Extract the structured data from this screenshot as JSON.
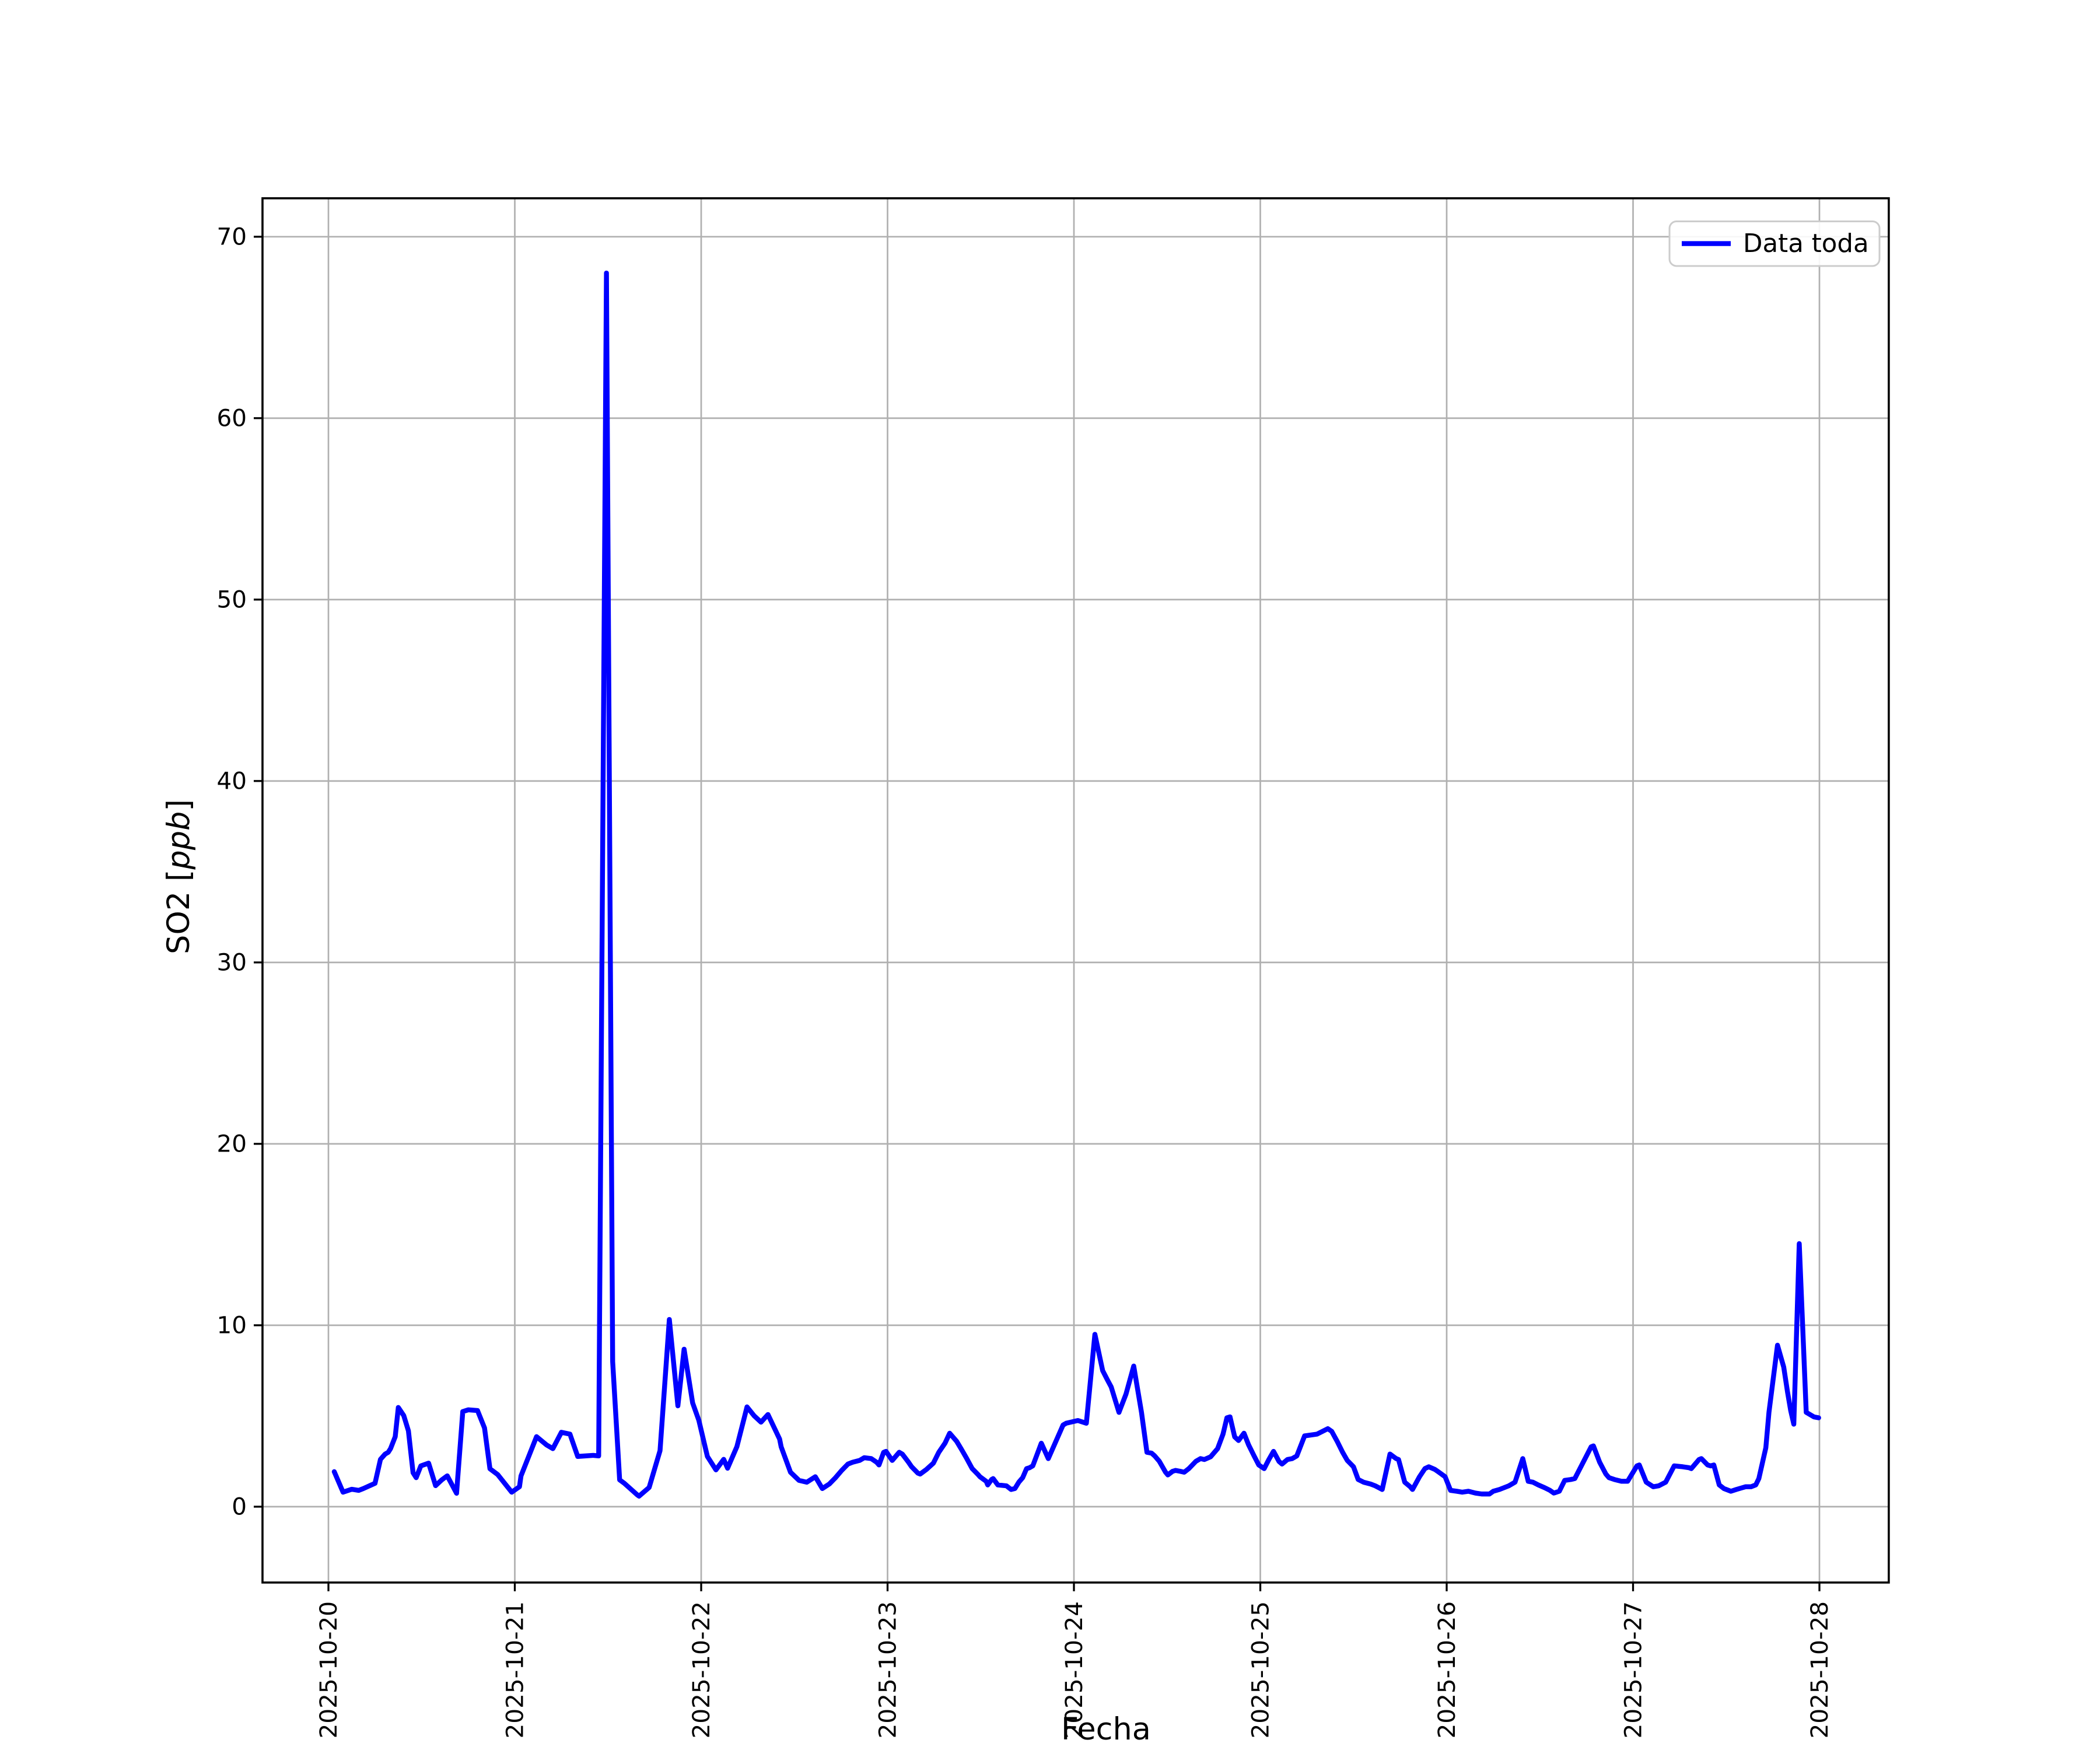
{
  "figure": {
    "background": "#ffffff",
    "title": ""
  },
  "axes": {
    "xlabel": "Fecha",
    "ylabel_prefix": "SO2 [",
    "ylabel_italic": "ppb",
    "ylabel_suffix": "]",
    "yticks": [
      0,
      10,
      20,
      30,
      40,
      50,
      60,
      70
    ],
    "xtick_hours": [
      0,
      24,
      48,
      72,
      96,
      120,
      144,
      168,
      192
    ],
    "xtick_labels": [
      "2025-10-20",
      "2025-10-21",
      "2025-10-22",
      "2025-10-23",
      "2025-10-24",
      "2025-10-25",
      "2025-10-26",
      "2025-10-27",
      "2025-10-28"
    ],
    "xlim_hours": [
      -8.49,
      200.93
    ],
    "ylim": [
      -4.18,
      72.12
    ],
    "grid": true,
    "grid_color": "#b0b0b0",
    "spine_color": "#000000"
  },
  "legend": {
    "label": "Data toda",
    "location": "upper right",
    "border_color": "#cccccc",
    "background": "#ffffff"
  },
  "chart_data": {
    "type": "line",
    "title": "",
    "xlabel": "Fecha",
    "ylabel": "SO2 [ppb]",
    "x_unit": "hours since 2025-10-20 00:00",
    "x_range_dates": [
      "2025-10-20",
      "2025-10-28"
    ],
    "ylim": [
      -4.18,
      72.12
    ],
    "grid": true,
    "legend_position": "upper right",
    "series": [
      {
        "name": "Data toda",
        "color": "#0000ff",
        "x_hours": [
          0.75,
          1.88,
          3.0,
          3.9,
          4.5,
          6.0,
          6.7,
          7.3,
          7.7,
          8.0,
          8.6,
          9.0,
          9.7,
          10.3,
          10.9,
          11.3,
          11.9,
          12.9,
          13.8,
          14.6,
          15.3,
          16.5,
          17.3,
          18.0,
          19.2,
          20.1,
          20.8,
          21.8,
          23.6,
          24.6,
          24.8,
          26.8,
          28.1,
          28.9,
          30.0,
          31.1,
          32.1,
          34.1,
          34.8,
          35.8,
          36.6,
          37.5,
          38.1,
          39.8,
          40.0,
          41.3,
          42.7,
          43.9,
          45.0,
          45.8,
          46.9,
          47.7,
          48.8,
          49.9,
          50.9,
          51.4,
          52.6,
          53.5,
          53.9,
          54.8,
          55.7,
          56.6,
          58.1,
          58.3,
          59.5,
          60.6,
          61.6,
          62.7,
          63.6,
          64.5,
          65.3,
          66.1,
          66.9,
          67.5,
          68.4,
          69.0,
          69.9,
          70.6,
          70.9,
          71.5,
          71.8,
          72.6,
          73.5,
          73.9,
          74.7,
          75.1,
          75.9,
          76.2,
          77.0,
          77.9,
          78.6,
          79.4,
          80.0,
          80.9,
          81.6,
          82.2,
          82.9,
          83.7,
          83.9,
          84.7,
          84.9,
          85.4,
          85.6,
          86.2,
          87.3,
          87.9,
          88.4,
          88.9,
          89.4,
          89.9,
          90.3,
          90.7,
          91.8,
          92.7,
          94.6,
          95.0,
          96.5,
          97.6,
          98.7,
          99.7,
          100.3,
          100.8,
          101.8,
          102.7,
          103.7,
          104.7,
          105.4,
          106.0,
          106.4,
          107.0,
          107.8,
          108.1,
          108.7,
          109.1,
          109.7,
          110.2,
          110.8,
          111.7,
          112.3,
          112.8,
          113.6,
          114.5,
          115.2,
          115.7,
          116.1,
          116.7,
          117.2,
          117.9,
          118.5,
          119.2,
          119.8,
          120.5,
          121.1,
          121.7,
          122.4,
          122.8,
          123.5,
          124.1,
          124.7,
          125.7,
          127.3,
          128.7,
          129.2,
          129.9,
          130.6,
          131.2,
          132.0,
          132.6,
          133.3,
          134.2,
          134.8,
          135.7,
          136.7,
          137.5,
          137.8,
          138.6,
          139.3,
          139.6,
          140.5,
          141.2,
          141.7,
          142.5,
          143.0,
          143.8,
          144.5,
          145.3,
          146.0,
          146.8,
          147.7,
          148.5,
          149.5,
          150.0,
          150.8,
          152.0,
          152.8,
          153.8,
          154.5,
          155.1,
          155.8,
          156.6,
          157.3,
          157.8,
          158.5,
          159.2,
          160.0,
          160.5,
          162.6,
          162.9,
          163.7,
          164.5,
          164.9,
          165.6,
          166.5,
          167.3,
          168.5,
          168.8,
          169.7,
          170.6,
          171.3,
          172.2,
          173.3,
          174.4,
          175.2,
          175.5,
          176.5,
          176.8,
          177.6,
          178.0,
          178.4,
          179.1,
          179.7,
          180.6,
          181.3,
          182.1,
          182.5,
          183.2,
          183.8,
          184.2,
          185.1,
          185.5,
          186.6,
          187.4,
          187.9,
          188.3,
          188.7,
          189.4,
          190.3,
          191.3,
          191.9
        ],
        "values": [
          1.93,
          0.8,
          0.96,
          0.9,
          1.0,
          1.29,
          2.61,
          2.9,
          3.0,
          3.2,
          3.86,
          5.47,
          5.02,
          4.18,
          1.87,
          1.6,
          2.25,
          2.4,
          1.16,
          1.48,
          1.7,
          0.74,
          5.24,
          5.34,
          5.3,
          4.34,
          2.09,
          1.77,
          0.8,
          1.1,
          1.7,
          3.86,
          3.4,
          3.2,
          4.1,
          4.0,
          2.77,
          2.83,
          2.8,
          68.0,
          8.0,
          1.48,
          1.29,
          0.64,
          0.58,
          1.06,
          3.09,
          10.32,
          5.56,
          8.68,
          5.72,
          4.76,
          2.77,
          2.03,
          2.61,
          2.12,
          3.31,
          4.82,
          5.5,
          5.02,
          4.66,
          5.08,
          3.73,
          3.3,
          1.9,
          1.45,
          1.35,
          1.65,
          1.0,
          1.25,
          1.6,
          2.0,
          2.35,
          2.45,
          2.55,
          2.7,
          2.65,
          2.45,
          2.3,
          3.0,
          3.05,
          2.55,
          3.0,
          2.9,
          2.45,
          2.2,
          1.85,
          1.8,
          2.05,
          2.4,
          3.0,
          3.5,
          4.05,
          3.6,
          3.1,
          2.65,
          2.1,
          1.75,
          1.65,
          1.4,
          1.2,
          1.5,
          1.55,
          1.2,
          1.15,
          0.95,
          1.0,
          1.35,
          1.6,
          2.1,
          2.15,
          2.25,
          3.5,
          2.65,
          4.5,
          4.6,
          4.75,
          4.6,
          9.5,
          7.5,
          7.0,
          6.6,
          5.2,
          6.2,
          7.75,
          5.2,
          3.0,
          2.95,
          2.8,
          2.5,
          1.9,
          1.75,
          1.95,
          2.0,
          1.95,
          1.9,
          2.1,
          2.5,
          2.65,
          2.6,
          2.75,
          3.2,
          4.0,
          4.9,
          4.95,
          3.85,
          3.65,
          4.05,
          3.4,
          2.8,
          2.3,
          2.1,
          2.6,
          3.05,
          2.5,
          2.35,
          2.6,
          2.65,
          2.8,
          3.9,
          4.0,
          4.3,
          4.15,
          3.6,
          3.0,
          2.55,
          2.2,
          1.5,
          1.35,
          1.25,
          1.15,
          0.95,
          2.9,
          2.65,
          2.6,
          1.35,
          1.1,
          0.95,
          1.65,
          2.1,
          2.2,
          2.05,
          1.9,
          1.65,
          0.9,
          0.85,
          0.8,
          0.85,
          0.75,
          0.7,
          0.7,
          0.85,
          0.95,
          1.15,
          1.35,
          2.65,
          1.4,
          1.35,
          1.2,
          1.05,
          0.9,
          0.75,
          0.85,
          1.45,
          1.5,
          1.55,
          3.3,
          3.35,
          2.45,
          1.8,
          1.6,
          1.5,
          1.4,
          1.4,
          2.25,
          2.3,
          1.35,
          1.1,
          1.15,
          1.35,
          2.25,
          2.2,
          2.15,
          2.1,
          2.6,
          2.65,
          2.3,
          2.25,
          2.3,
          1.2,
          1.0,
          0.85,
          0.95,
          1.05,
          1.1,
          1.1,
          1.2,
          1.55,
          3.25,
          5.2,
          8.9,
          7.7,
          6.3,
          5.3,
          4.55,
          14.5,
          5.2,
          4.95,
          4.9
        ]
      }
    ]
  }
}
